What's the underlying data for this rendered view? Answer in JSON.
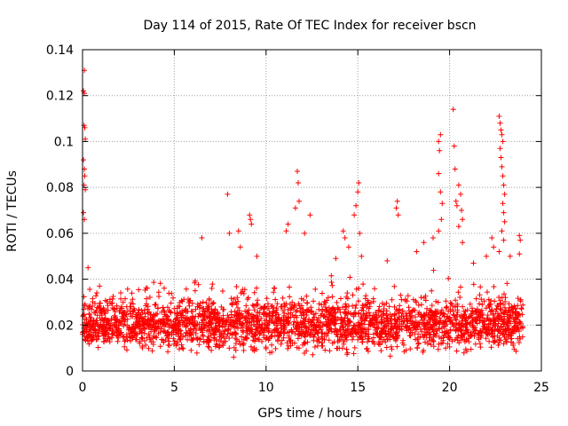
{
  "chart_data": {
    "type": "scatter",
    "title": "Day 114 of 2015, Rate Of TEC Index for receiver bscn",
    "xlabel": "GPS time / hours",
    "ylabel": "ROTI / TECUs",
    "xlim": [
      0,
      25
    ],
    "ylim": [
      0,
      0.14
    ],
    "x_ticks": [
      0,
      5,
      10,
      15,
      20,
      25
    ],
    "x_tick_labels": [
      "0",
      "5",
      "10",
      "15",
      "20",
      "25"
    ],
    "y_ticks": [
      0,
      0.02,
      0.04,
      0.06,
      0.08,
      0.1,
      0.12,
      0.14
    ],
    "y_tick_labels": [
      "0",
      "0.02",
      "0.04",
      "0.06",
      "0.08",
      "0.1",
      "0.12",
      "0.14"
    ],
    "grid": true,
    "marker": "+",
    "color": "#ff0000",
    "series": [
      {
        "name": "ROTI",
        "baseline_range": [
          0.005,
          0.035
        ],
        "x_range": [
          0,
          24
        ],
        "notable_points": [
          {
            "x": 0.1,
            "y": 0.131
          },
          {
            "x": 0.05,
            "y": 0.122
          },
          {
            "x": 0.1,
            "y": 0.121
          },
          {
            "x": 0.08,
            "y": 0.107
          },
          {
            "x": 0.12,
            "y": 0.106
          },
          {
            "x": 0.15,
            "y": 0.101
          },
          {
            "x": 0.05,
            "y": 0.092
          },
          {
            "x": 0.1,
            "y": 0.088
          },
          {
            "x": 0.12,
            "y": 0.085
          },
          {
            "x": 0.08,
            "y": 0.081
          },
          {
            "x": 0.15,
            "y": 0.079
          },
          {
            "x": 0.05,
            "y": 0.069
          },
          {
            "x": 0.1,
            "y": 0.066
          },
          {
            "x": 0.3,
            "y": 0.045
          },
          {
            "x": 6.5,
            "y": 0.058
          },
          {
            "x": 7.9,
            "y": 0.077
          },
          {
            "x": 8.0,
            "y": 0.06
          },
          {
            "x": 8.5,
            "y": 0.061
          },
          {
            "x": 8.6,
            "y": 0.054
          },
          {
            "x": 9.1,
            "y": 0.068
          },
          {
            "x": 9.15,
            "y": 0.066
          },
          {
            "x": 9.2,
            "y": 0.064
          },
          {
            "x": 9.5,
            "y": 0.05
          },
          {
            "x": 11.1,
            "y": 0.061
          },
          {
            "x": 11.2,
            "y": 0.064
          },
          {
            "x": 11.6,
            "y": 0.071
          },
          {
            "x": 11.7,
            "y": 0.087
          },
          {
            "x": 11.75,
            "y": 0.082
          },
          {
            "x": 11.8,
            "y": 0.074
          },
          {
            "x": 12.1,
            "y": 0.06
          },
          {
            "x": 12.4,
            "y": 0.068
          },
          {
            "x": 13.8,
            "y": 0.049
          },
          {
            "x": 14.2,
            "y": 0.061
          },
          {
            "x": 14.3,
            "y": 0.058
          },
          {
            "x": 14.5,
            "y": 0.054
          },
          {
            "x": 14.8,
            "y": 0.068
          },
          {
            "x": 14.9,
            "y": 0.072
          },
          {
            "x": 15.0,
            "y": 0.078
          },
          {
            "x": 15.05,
            "y": 0.082
          },
          {
            "x": 15.1,
            "y": 0.06
          },
          {
            "x": 15.2,
            "y": 0.05
          },
          {
            "x": 16.6,
            "y": 0.048
          },
          {
            "x": 17.1,
            "y": 0.071
          },
          {
            "x": 17.15,
            "y": 0.074
          },
          {
            "x": 17.2,
            "y": 0.068
          },
          {
            "x": 18.2,
            "y": 0.052
          },
          {
            "x": 18.6,
            "y": 0.056
          },
          {
            "x": 19.1,
            "y": 0.058
          },
          {
            "x": 19.4,
            "y": 0.1
          },
          {
            "x": 19.5,
            "y": 0.103
          },
          {
            "x": 19.45,
            "y": 0.096
          },
          {
            "x": 19.4,
            "y": 0.086
          },
          {
            "x": 19.5,
            "y": 0.078
          },
          {
            "x": 19.6,
            "y": 0.073
          },
          {
            "x": 19.55,
            "y": 0.066
          },
          {
            "x": 19.4,
            "y": 0.061
          },
          {
            "x": 20.2,
            "y": 0.114
          },
          {
            "x": 20.25,
            "y": 0.098
          },
          {
            "x": 20.3,
            "y": 0.088
          },
          {
            "x": 20.35,
            "y": 0.074
          },
          {
            "x": 20.4,
            "y": 0.072
          },
          {
            "x": 20.5,
            "y": 0.081
          },
          {
            "x": 20.6,
            "y": 0.077
          },
          {
            "x": 20.65,
            "y": 0.07
          },
          {
            "x": 20.7,
            "y": 0.066
          },
          {
            "x": 20.5,
            "y": 0.063
          },
          {
            "x": 20.7,
            "y": 0.056
          },
          {
            "x": 21.3,
            "y": 0.047
          },
          {
            "x": 22.0,
            "y": 0.05
          },
          {
            "x": 22.3,
            "y": 0.058
          },
          {
            "x": 22.4,
            "y": 0.054
          },
          {
            "x": 22.7,
            "y": 0.111
          },
          {
            "x": 22.75,
            "y": 0.108
          },
          {
            "x": 22.8,
            "y": 0.105
          },
          {
            "x": 22.85,
            "y": 0.103
          },
          {
            "x": 22.9,
            "y": 0.1
          },
          {
            "x": 22.75,
            "y": 0.097
          },
          {
            "x": 22.8,
            "y": 0.093
          },
          {
            "x": 22.85,
            "y": 0.089
          },
          {
            "x": 22.9,
            "y": 0.085
          },
          {
            "x": 22.95,
            "y": 0.081
          },
          {
            "x": 23.0,
            "y": 0.077
          },
          {
            "x": 22.9,
            "y": 0.073
          },
          {
            "x": 22.95,
            "y": 0.069
          },
          {
            "x": 23.0,
            "y": 0.065
          },
          {
            "x": 22.85,
            "y": 0.061
          },
          {
            "x": 22.95,
            "y": 0.057
          },
          {
            "x": 22.7,
            "y": 0.052
          },
          {
            "x": 23.3,
            "y": 0.05
          },
          {
            "x": 23.8,
            "y": 0.059
          },
          {
            "x": 23.85,
            "y": 0.057
          },
          {
            "x": 23.8,
            "y": 0.051
          }
        ]
      }
    ]
  }
}
